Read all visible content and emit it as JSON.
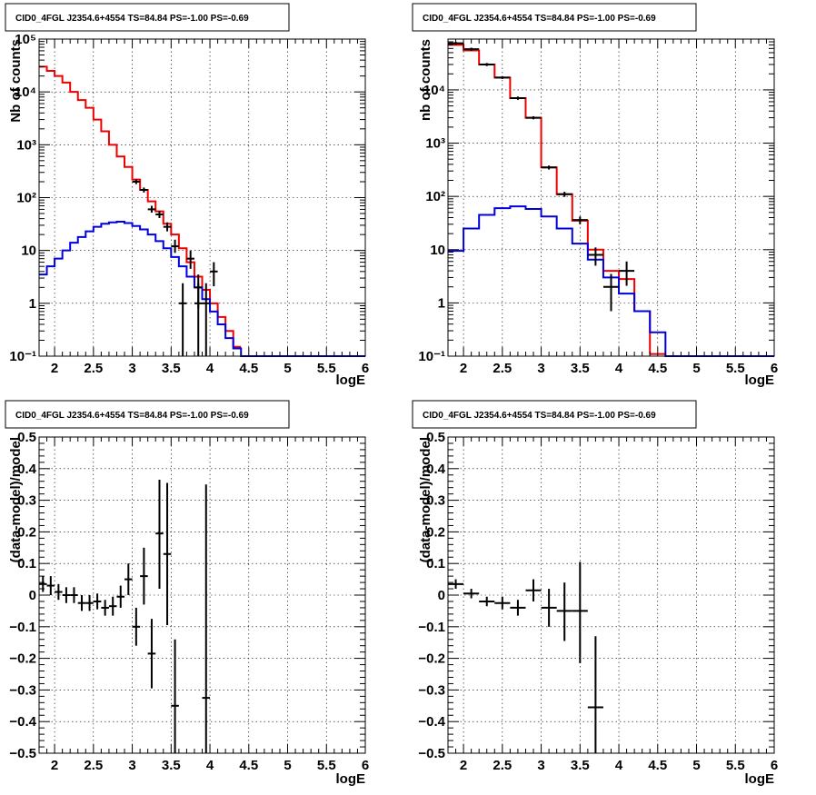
{
  "panels": [
    {
      "id": "p1",
      "title": "CID0_4FGL J2354.6+4554 TS=84.84 PS=-1.00 PS=-0.69",
      "ylabel": "Nb of counts",
      "xlabel": "logE",
      "x_ticks": [
        "2",
        "2.5",
        "3",
        "3.5",
        "4",
        "4.5",
        "5",
        "5.5",
        "6"
      ],
      "y_ticks": [
        "10⁻¹",
        "1",
        "10",
        "10²",
        "10³",
        "10⁴",
        "10⁵"
      ]
    },
    {
      "id": "p2",
      "title": "CID0_4FGL J2354.6+4554 TS=84.84 PS=-1.00 PS=-0.69",
      "ylabel": "nb of counts",
      "xlabel": "logE",
      "x_ticks": [
        "2",
        "2.5",
        "3",
        "3.5",
        "4",
        "4.5",
        "5",
        "5.5",
        "6"
      ],
      "y_ticks": [
        "10⁻¹",
        "1",
        "10",
        "10²",
        "10³",
        "10⁴"
      ]
    },
    {
      "id": "p3",
      "title": "CID0_4FGL J2354.6+4554 TS=84.84 PS=-1.00 PS=-0.69",
      "ylabel": "(data-model)/model",
      "xlabel": "logE",
      "x_ticks": [
        "2",
        "2.5",
        "3",
        "3.5",
        "4",
        "4.5",
        "5",
        "5.5",
        "6"
      ],
      "y_ticks": [
        "−0.5",
        "−0.4",
        "−0.3",
        "−0.2",
        "−0.1",
        "0",
        "0.1",
        "0.2",
        "0.3",
        "0.4",
        "0.5"
      ]
    },
    {
      "id": "p4",
      "title": "CID0_4FGL J2354.6+4554 TS=84.84 PS=-1.00 PS=-0.69",
      "ylabel": "(data-model)/model",
      "xlabel": "logE",
      "x_ticks": [
        "2",
        "2.5",
        "3",
        "3.5",
        "4",
        "4.5",
        "5",
        "5.5",
        "6"
      ],
      "y_ticks": [
        "−0.5",
        "−0.4",
        "−0.3",
        "−0.2",
        "−0.1",
        "0",
        "0.1",
        "0.2",
        "0.3",
        "0.4",
        "0.5"
      ]
    }
  ],
  "chart_data": [
    {
      "type": "line",
      "title": "CID0_4FGL J2354.6+4554 TS=84.84 PS=-1.00 PS=-0.69",
      "xlabel": "logE",
      "ylabel": "Nb of counts",
      "xlim": [
        1.8,
        6.0
      ],
      "ylim": [
        0.1,
        100000
      ],
      "yscale": "log",
      "grid": true,
      "histograms": [
        {
          "color": "#ee0000",
          "edges": [
            1.8,
            1.9,
            2.0,
            2.1,
            2.2,
            2.3,
            2.4,
            2.5,
            2.6,
            2.7,
            2.8,
            2.9,
            3.0,
            3.1,
            3.2,
            3.3,
            3.4,
            3.5,
            3.6,
            3.7,
            3.8,
            3.9,
            4.0,
            4.1,
            4.2,
            4.3,
            4.4
          ],
          "values": [
            30000,
            25000,
            20000,
            15000,
            10000,
            7000,
            5000,
            3000,
            1800,
            1000,
            600,
            380,
            220,
            140,
            85,
            55,
            32,
            20,
            11,
            6,
            3.2,
            1.8,
            1.0,
            0.55,
            0.3,
            0.15
          ]
        },
        {
          "color": "#0000dd",
          "edges": [
            1.8,
            1.9,
            2.0,
            2.1,
            2.2,
            2.3,
            2.4,
            2.5,
            2.6,
            2.7,
            2.8,
            2.9,
            3.0,
            3.1,
            3.2,
            3.3,
            3.4,
            3.5,
            3.6,
            3.7,
            3.8,
            3.9,
            4.0,
            4.1,
            4.2,
            4.3,
            4.4,
            6.0
          ],
          "values": [
            3.5,
            5,
            7,
            10,
            14,
            18,
            23,
            28,
            32,
            34,
            35,
            33,
            29,
            25,
            20,
            15,
            11,
            7.5,
            5,
            3.2,
            2,
            1.2,
            0.7,
            0.4,
            0.22,
            0.14,
            0.1
          ]
        }
      ],
      "points": [
        {
          "x": 3.05,
          "xerr": 0.05,
          "y": 200,
          "ylo": 180,
          "yhi": 220
        },
        {
          "x": 3.15,
          "xerr": 0.05,
          "y": 140,
          "ylo": 125,
          "yhi": 155
        },
        {
          "x": 3.25,
          "xerr": 0.05,
          "y": 60,
          "ylo": 52,
          "yhi": 70
        },
        {
          "x": 3.35,
          "xerr": 0.05,
          "y": 48,
          "ylo": 41,
          "yhi": 56
        },
        {
          "x": 3.45,
          "xerr": 0.05,
          "y": 28,
          "ylo": 23,
          "yhi": 34
        },
        {
          "x": 3.55,
          "xerr": 0.05,
          "y": 12,
          "ylo": 9,
          "yhi": 16
        },
        {
          "x": 3.65,
          "xerr": 0.05,
          "y": 1,
          "ylo": 0.1,
          "yhi": 2.4
        },
        {
          "x": 3.75,
          "xerr": 0.05,
          "y": 7,
          "ylo": 4.5,
          "yhi": 10
        },
        {
          "x": 3.85,
          "xerr": 0.05,
          "y": 2,
          "ylo": 0.8,
          "yhi": 3.5
        },
        {
          "x": 3.85,
          "xerr": 0.05,
          "y": 1,
          "ylo": 0.1,
          "yhi": 2.4
        },
        {
          "x": 3.95,
          "xerr": 0.05,
          "y": 1,
          "ylo": 0.1,
          "yhi": 2.4
        },
        {
          "x": 4.05,
          "xerr": 0.05,
          "y": 4,
          "ylo": 2.1,
          "yhi": 6
        }
      ]
    },
    {
      "type": "line",
      "title": "CID0_4FGL J2354.6+4554 TS=84.84 PS=-1.00 PS=-0.69",
      "xlabel": "logE",
      "ylabel": "nb of counts",
      "xlim": [
        1.8,
        6.0
      ],
      "ylim": [
        0.1,
        90000
      ],
      "yscale": "log",
      "grid": true,
      "histograms": [
        {
          "color": "#ee0000",
          "edges": [
            1.8,
            2.0,
            2.2,
            2.4,
            2.6,
            2.8,
            3.0,
            3.2,
            3.4,
            3.6,
            3.8,
            4.0,
            4.2,
            4.4,
            4.6
          ],
          "values": [
            70000,
            55000,
            30000,
            17000,
            7000,
            3000,
            350,
            110,
            35,
            10,
            4,
            2.8,
            0.7,
            0.11
          ]
        },
        {
          "color": "#0000dd",
          "edges": [
            1.8,
            2.0,
            2.2,
            2.4,
            2.6,
            2.8,
            3.0,
            3.2,
            3.4,
            3.6,
            3.8,
            4.0,
            4.2,
            4.4,
            4.6,
            6.0
          ],
          "values": [
            9.5,
            25,
            45,
            60,
            65,
            58,
            42,
            25,
            13,
            6.5,
            3,
            1.5,
            0.7,
            0.28,
            0.1
          ]
        }
      ],
      "points": [
        {
          "x": 1.9,
          "xerr": 0.1,
          "y": 75000,
          "ylo": 70000,
          "yhi": 80000
        },
        {
          "x": 2.1,
          "xerr": 0.1,
          "y": 58000,
          "ylo": 54000,
          "yhi": 62000
        },
        {
          "x": 2.3,
          "xerr": 0.1,
          "y": 30000,
          "ylo": 28000,
          "yhi": 32000
        },
        {
          "x": 2.5,
          "xerr": 0.1,
          "y": 17000,
          "ylo": 16000,
          "yhi": 18000
        },
        {
          "x": 2.7,
          "xerr": 0.1,
          "y": 7000,
          "ylo": 6500,
          "yhi": 7500
        },
        {
          "x": 2.9,
          "xerr": 0.1,
          "y": 3000,
          "ylo": 2800,
          "yhi": 3200
        },
        {
          "x": 3.1,
          "xerr": 0.1,
          "y": 350,
          "ylo": 320,
          "yhi": 380
        },
        {
          "x": 3.3,
          "xerr": 0.1,
          "y": 110,
          "ylo": 98,
          "yhi": 122
        },
        {
          "x": 3.5,
          "xerr": 0.1,
          "y": 36,
          "ylo": 30,
          "yhi": 42
        },
        {
          "x": 3.7,
          "xerr": 0.1,
          "y": 8,
          "ylo": 5,
          "yhi": 11
        },
        {
          "x": 3.9,
          "xerr": 0.1,
          "y": 2,
          "ylo": 0.7,
          "yhi": 3.5
        },
        {
          "x": 4.1,
          "xerr": 0.1,
          "y": 4,
          "ylo": 2.1,
          "yhi": 6
        }
      ]
    },
    {
      "type": "scatter",
      "title": "CID0_4FGL J2354.6+4554 TS=84.84 PS=-1.00 PS=-0.69",
      "xlabel": "logE",
      "ylabel": "(data-model)/model",
      "xlim": [
        1.8,
        6.0
      ],
      "ylim": [
        -0.5,
        0.5
      ],
      "grid": true,
      "points": [
        {
          "x": 1.85,
          "xerr": 0.05,
          "y": 0.035,
          "ylo": 0.01,
          "yhi": 0.06
        },
        {
          "x": 1.95,
          "xerr": 0.05,
          "y": 0.03,
          "ylo": 0.0,
          "yhi": 0.06
        },
        {
          "x": 2.05,
          "xerr": 0.05,
          "y": 0.01,
          "ylo": -0.015,
          "yhi": 0.035
        },
        {
          "x": 2.15,
          "xerr": 0.05,
          "y": 0.0,
          "ylo": -0.025,
          "yhi": 0.025
        },
        {
          "x": 2.25,
          "xerr": 0.05,
          "y": 0.0,
          "ylo": -0.025,
          "yhi": 0.025
        },
        {
          "x": 2.35,
          "xerr": 0.05,
          "y": -0.025,
          "ylo": -0.05,
          "yhi": 0.0
        },
        {
          "x": 2.45,
          "xerr": 0.05,
          "y": -0.025,
          "ylo": -0.05,
          "yhi": 0.0
        },
        {
          "x": 2.55,
          "xerr": 0.05,
          "y": -0.02,
          "ylo": -0.045,
          "yhi": 0.005
        },
        {
          "x": 2.65,
          "xerr": 0.05,
          "y": -0.04,
          "ylo": -0.065,
          "yhi": -0.015
        },
        {
          "x": 2.75,
          "xerr": 0.05,
          "y": -0.035,
          "ylo": -0.065,
          "yhi": -0.005
        },
        {
          "x": 2.85,
          "xerr": 0.05,
          "y": -0.005,
          "ylo": -0.04,
          "yhi": 0.03
        },
        {
          "x": 2.95,
          "xerr": 0.05,
          "y": 0.05,
          "ylo": 0.0,
          "yhi": 0.1
        },
        {
          "x": 3.05,
          "xerr": 0.05,
          "y": -0.1,
          "ylo": -0.16,
          "yhi": -0.04
        },
        {
          "x": 3.15,
          "xerr": 0.05,
          "y": 0.06,
          "ylo": -0.03,
          "yhi": 0.15
        },
        {
          "x": 3.25,
          "xerr": 0.05,
          "y": -0.185,
          "ylo": -0.295,
          "yhi": -0.075
        },
        {
          "x": 3.35,
          "xerr": 0.05,
          "y": 0.195,
          "ylo": 0.02,
          "yhi": 0.365
        },
        {
          "x": 3.45,
          "xerr": 0.05,
          "y": 0.13,
          "ylo": -0.095,
          "yhi": 0.355
        },
        {
          "x": 3.55,
          "xerr": 0.05,
          "y": -0.35,
          "ylo": -0.5,
          "yhi": -0.14
        },
        {
          "x": 3.95,
          "xerr": 0.05,
          "y": -0.325,
          "ylo": -0.5,
          "yhi": 0.35
        }
      ]
    },
    {
      "type": "scatter",
      "title": "CID0_4FGL J2354.6+4554 TS=84.84 PS=-1.00 PS=-0.69",
      "xlabel": "logE",
      "ylabel": "(data-model)/model",
      "xlim": [
        1.8,
        6.0
      ],
      "ylim": [
        -0.5,
        0.5
      ],
      "grid": true,
      "points": [
        {
          "x": 1.9,
          "xerr": 0.1,
          "y": 0.035,
          "ylo": 0.02,
          "yhi": 0.05
        },
        {
          "x": 2.1,
          "xerr": 0.1,
          "y": 0.005,
          "ylo": -0.01,
          "yhi": 0.02
        },
        {
          "x": 2.3,
          "xerr": 0.1,
          "y": -0.02,
          "ylo": -0.035,
          "yhi": -0.005
        },
        {
          "x": 2.5,
          "xerr": 0.1,
          "y": -0.025,
          "ylo": -0.045,
          "yhi": -0.005
        },
        {
          "x": 2.7,
          "xerr": 0.1,
          "y": -0.04,
          "ylo": -0.065,
          "yhi": -0.015
        },
        {
          "x": 2.9,
          "xerr": 0.1,
          "y": 0.015,
          "ylo": -0.02,
          "yhi": 0.05
        },
        {
          "x": 3.1,
          "xerr": 0.1,
          "y": -0.04,
          "ylo": -0.1,
          "yhi": 0.02
        },
        {
          "x": 3.3,
          "xerr": 0.1,
          "y": -0.05,
          "ylo": -0.145,
          "yhi": 0.04
        },
        {
          "x": 3.5,
          "xerr": 0.1,
          "y": -0.05,
          "ylo": -0.215,
          "yhi": 0.105
        },
        {
          "x": 3.7,
          "xerr": 0.1,
          "y": -0.355,
          "ylo": -0.5,
          "yhi": -0.13
        }
      ]
    }
  ]
}
